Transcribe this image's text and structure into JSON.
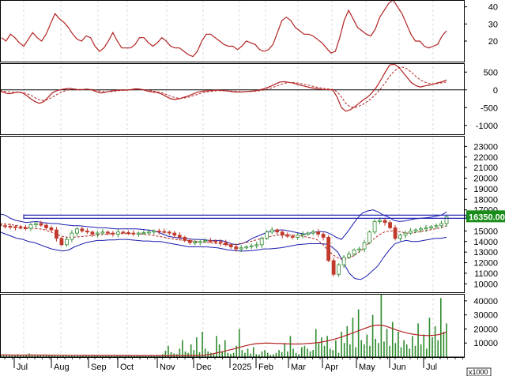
{
  "chart_data": [
    {
      "type": "line",
      "panel": "rsi",
      "yticks": [
        20,
        30,
        40
      ],
      "ylim": [
        8,
        44
      ],
      "colors": {
        "line": "#b22222"
      },
      "series": [
        {
          "values": [
            22,
            20,
            24,
            22,
            19,
            17,
            21,
            25,
            22,
            20,
            24,
            30,
            36,
            33,
            31,
            28,
            24,
            21,
            20,
            23,
            22,
            17,
            14,
            16,
            20,
            25,
            20,
            16,
            16,
            16,
            18,
            22,
            22,
            19,
            17,
            19,
            22,
            20,
            17,
            16,
            16,
            14,
            12,
            11,
            14,
            20,
            24,
            24,
            22,
            20,
            18,
            17,
            17,
            15,
            17,
            20,
            19,
            18,
            15,
            14,
            15,
            18,
            25,
            32,
            34,
            32,
            28,
            26,
            24,
            24,
            23,
            21,
            19,
            16,
            13,
            14,
            22,
            32,
            38,
            33,
            28,
            26,
            24,
            23,
            27,
            34,
            38,
            42,
            44,
            40,
            36,
            30,
            24,
            20,
            20,
            17,
            16,
            17,
            18,
            23,
            26
          ]
        }
      ]
    },
    {
      "type": "line",
      "panel": "macd",
      "yticks": [
        500,
        0,
        -500,
        -1000
      ],
      "ylim": [
        -1250,
        750
      ],
      "colors": {
        "macd": "#b22222",
        "signal": "#b22222",
        "zero": "#000000"
      },
      "series": [
        {
          "values": [
            -30,
            -80,
            -110,
            -90,
            -60,
            -80,
            -150,
            -250,
            -330,
            -380,
            -330,
            -210,
            -80,
            -20,
            10,
            30,
            40,
            20,
            0,
            10,
            20,
            0,
            -50,
            -90,
            -70,
            -40,
            -20,
            -10,
            -5,
            -5,
            10,
            30,
            20,
            -10,
            -40,
            -60,
            -80,
            -120,
            -190,
            -250,
            -270,
            -250,
            -210,
            -170,
            -120,
            -70,
            -40,
            -30,
            -20,
            -10,
            -10,
            -20,
            -30,
            -50,
            -60,
            -60,
            -50,
            -40,
            -30,
            -10,
            20,
            60,
            110,
            170,
            220,
            230,
            210,
            190,
            150,
            120,
            90,
            60,
            40,
            20,
            10,
            5,
            0,
            -200,
            -500,
            -600,
            -560,
            -480,
            -380,
            -280,
            -200,
            -80,
            80,
            280,
            500,
            700,
            720,
            650,
            500,
            350,
            200,
            120,
            80,
            110,
            130,
            160,
            200,
            230,
            280
          ]
        },
        {
          "values": [
            -20,
            -40,
            -60,
            -70,
            -70,
            -70,
            -100,
            -150,
            -220,
            -280,
            -300,
            -270,
            -200,
            -130,
            -70,
            -20,
            10,
            20,
            15,
            12,
            15,
            10,
            -10,
            -40,
            -55,
            -50,
            -40,
            -25,
            -15,
            -10,
            -2,
            10,
            15,
            5,
            -15,
            -35,
            -55,
            -85,
            -130,
            -180,
            -220,
            -240,
            -230,
            -205,
            -170,
            -130,
            -90,
            -60,
            -45,
            -30,
            -20,
            -20,
            -25,
            -35,
            -45,
            -52,
            -52,
            -48,
            -40,
            -28,
            -10,
            15,
            55,
            100,
            145,
            185,
            205,
            205,
            190,
            170,
            145,
            115,
            85,
            60,
            40,
            25,
            15,
            -50,
            -200,
            -380,
            -480,
            -500,
            -460,
            -400,
            -320,
            -220,
            -100,
            40,
            200,
            380,
            520,
            620,
            640,
            590,
            490,
            380,
            280,
            220,
            180,
            170,
            180,
            200,
            220
          ]
        }
      ]
    },
    {
      "type": "line",
      "panel": "price",
      "yticks": [
        10000,
        11000,
        12000,
        13000,
        14000,
        15000,
        16000,
        17000,
        18000,
        19000,
        20000,
        21000,
        22000,
        23000
      ],
      "ylim": [
        9200,
        24000
      ],
      "x_labels": [
        "Jul",
        "Aug",
        "Sep",
        "Oct",
        "Nov",
        "Dec",
        "2025",
        "Feb",
        "Mar",
        "Apr",
        "May",
        "Jun",
        "Jul"
      ],
      "last_price_label": "16350.00",
      "resistance_level": 16350,
      "colors": {
        "candle_up": "#2e8b2e",
        "candle_down": "#c0392b",
        "bollinger": "#1c1cb0",
        "ma": "#b22222",
        "resistance": "#1c1cb0",
        "price_label_bg": "#1a8c1a"
      },
      "series": [
        {
          "name": "close",
          "values": [
            15500,
            15450,
            15400,
            15350,
            15300,
            15250,
            15600,
            15700,
            15550,
            15300,
            15100,
            14300,
            13700,
            14200,
            14800,
            15200,
            15000,
            14900,
            14700,
            14800,
            14900,
            14800,
            14700,
            14900,
            14850,
            14800,
            14750,
            14800,
            14850,
            14900,
            15000,
            14950,
            14900,
            14800,
            14600,
            14400,
            14100,
            13900,
            13950,
            14000,
            14100,
            14050,
            14000,
            13900,
            13700,
            13500,
            13300,
            13400,
            13500,
            13600,
            13700,
            14300,
            14900,
            15100,
            14900,
            14600,
            14500,
            14400,
            14600,
            14700,
            14800,
            14900,
            14700,
            14400,
            12200,
            10900,
            11800,
            12500,
            12800,
            13200,
            13300,
            13900,
            14900,
            15900,
            16000,
            15800,
            15300,
            14300,
            14600,
            14800,
            15000,
            15100,
            15200,
            15300,
            15400,
            15500,
            15700,
            16350
          ]
        },
        {
          "name": "bb_upper",
          "values": [
            16600,
            16500,
            16200,
            16000,
            15900,
            15800,
            15850,
            15900,
            15800,
            15750,
            15700,
            15700,
            15600,
            15550,
            15500,
            15500,
            15450,
            15400,
            15350,
            15300,
            15300,
            15250,
            15200,
            15200,
            15200,
            15200,
            15200,
            15150,
            15100,
            15050,
            14900,
            14700,
            14500,
            14400,
            14350,
            14300,
            14250,
            14200,
            14200,
            14150,
            14100,
            14100,
            14100,
            14000,
            13800,
            13700,
            13800,
            14000,
            14300,
            14500,
            14700,
            14900,
            15000,
            15100,
            15100,
            15000,
            14900,
            14800,
            14700,
            14800,
            14900,
            14950,
            14900,
            14700,
            14400,
            14200,
            14800,
            15500,
            16200,
            16700,
            16900,
            17000,
            16800,
            16500,
            16300,
            16000,
            15900,
            15950,
            16050,
            16150,
            16200,
            16250,
            16300,
            16400,
            16500,
            16800
          ]
        },
        {
          "name": "bb_lower",
          "values": [
            14900,
            14700,
            14500,
            14300,
            14200,
            14000,
            13900,
            13700,
            13500,
            13300,
            13200,
            13100,
            13200,
            13500,
            13700,
            13900,
            14000,
            14100,
            14100,
            14150,
            14150,
            14200,
            14200,
            14150,
            14100,
            14050,
            14050,
            14000,
            14000,
            13900,
            13800,
            13700,
            13600,
            13500,
            13500,
            13500,
            13500,
            13450,
            13400,
            13300,
            13200,
            13150,
            13100,
            13100,
            13150,
            13200,
            13300,
            13300,
            13350,
            13400,
            13500,
            13600,
            13700,
            13750,
            13800,
            13800,
            13800,
            13750,
            13500,
            13000,
            12000,
            11000,
            10500,
            10400,
            10700,
            11200,
            11700,
            12500,
            13200,
            13800,
            14000,
            14100,
            14000,
            14000,
            14100,
            14200,
            14300,
            14300,
            14400
          ]
        },
        {
          "name": "ma",
          "values": [
            15700,
            15650,
            15600,
            15500,
            15400,
            15300,
            15250,
            15200,
            15100,
            14900,
            14700,
            14500,
            14400,
            14400,
            14450,
            14500,
            14550,
            14600,
            14650,
            14700,
            14750,
            14750,
            14750,
            14750,
            14750,
            14700,
            14650,
            14600,
            14500,
            14400,
            14300,
            14200,
            14150,
            14100,
            14050,
            14000,
            13950,
            13900,
            13850,
            13800,
            13700,
            13700,
            13750,
            13850,
            13950,
            14100,
            14250,
            14400,
            14500,
            14600,
            14650,
            14650,
            14600,
            14550,
            14450,
            14350,
            14200,
            13800,
            13200,
            12700,
            12400,
            12300,
            12500,
            12800,
            13200,
            13700,
            14200,
            14600,
            14900,
            15000,
            15000,
            14900,
            14800,
            14800,
            14900,
            15000,
            15100,
            15200,
            15300,
            15500
          ]
        }
      ]
    },
    {
      "type": "bar",
      "panel": "volume",
      "yticks": [
        10000,
        20000,
        30000,
        40000
      ],
      "ylim": [
        0,
        45000
      ],
      "unit_label": "x1000",
      "colors": {
        "bar": "#2e8b2e",
        "ma": "#b22222"
      },
      "series": [
        {
          "name": "volume",
          "values": [
            1500,
            1200,
            1800,
            1400,
            1300,
            1100,
            2000,
            1600,
            1500,
            1300,
            2500,
            1800,
            1600,
            1400,
            1300,
            1200,
            1500,
            1400,
            1300,
            1100,
            1200,
            1000,
            1400,
            1300,
            1500,
            1200,
            1100,
            1300,
            1000,
            1200,
            1100,
            1000,
            900,
            1200,
            1400,
            1100,
            1000,
            900,
            1100,
            1000,
            1200,
            900,
            1100,
            1300,
            1000,
            1200,
            1400,
            1100,
            1500,
            1300,
            1200,
            1400,
            1100,
            1000,
            1200,
            1500,
            1300,
            2000,
            4500,
            8000,
            3500,
            2500,
            2000,
            6000,
            12000,
            4000,
            3000,
            9000,
            5000,
            14000,
            3500,
            18000,
            6000,
            4000,
            3000,
            2500,
            15000,
            9000,
            4000,
            12000,
            3000,
            2200,
            3000,
            8000,
            20000,
            5000,
            3000,
            6000,
            2500,
            7000,
            2000,
            1800,
            4000,
            5000,
            3000,
            1500,
            2000,
            3000,
            5000,
            3500,
            10000,
            4000,
            15000,
            6000,
            3000,
            2000,
            7000,
            8000,
            6000,
            4000,
            5000,
            20000,
            10000,
            14000,
            8000,
            15000,
            6000,
            5000,
            12000,
            3000,
            18000,
            10000,
            22000,
            9000,
            28000,
            7000,
            34000,
            12000,
            9000,
            16000,
            8000,
            30000,
            13000,
            10000,
            45000,
            11000,
            20000,
            8000,
            25000,
            10000,
            18000,
            7000,
            12000,
            9000,
            6000,
            15000,
            8000,
            24000,
            9000,
            16000,
            6000,
            28000,
            14000,
            22000,
            12000,
            42000,
            18000,
            24000
          ]
        },
        {
          "name": "volume_ma",
          "values": [
            1500,
            1450,
            1450,
            1400,
            1400,
            1350,
            1400,
            1400,
            1400,
            1380,
            1400,
            1400,
            1380,
            1350,
            1330,
            1300,
            1300,
            1280,
            1260,
            1240,
            1230,
            1200,
            1200,
            1190,
            1180,
            1170,
            1160,
            1150,
            1140,
            1130,
            1120,
            1100,
            1100,
            1100,
            1100,
            1090,
            1080,
            1070,
            1070,
            1060,
            1060,
            1060,
            1070,
            1080,
            1090,
            1100,
            1110,
            1120,
            1130,
            1150,
            1160,
            1180,
            1200,
            1250,
            1400,
            1700,
            2200,
            2800,
            3400,
            4000,
            4700,
            5300,
            6000,
            6800,
            7500,
            8200,
            8800,
            9300,
            9600,
            9800,
            9900,
            9900,
            9800,
            9700,
            9600,
            9500,
            9400,
            9300,
            9300,
            9300,
            9400,
            9600,
            9800,
            10000,
            10300,
            10700,
            11200,
            11800,
            12500,
            13300,
            14100,
            15000,
            16000,
            17000,
            18000,
            19000,
            20000,
            21000,
            22000,
            22500,
            22800,
            22500,
            22000,
            21000,
            20000,
            19000,
            18200,
            17500,
            16800,
            16300,
            15900,
            15600,
            15400,
            15300,
            15400,
            15600,
            16000,
            16800,
            17800
          ]
        }
      ]
    }
  ]
}
